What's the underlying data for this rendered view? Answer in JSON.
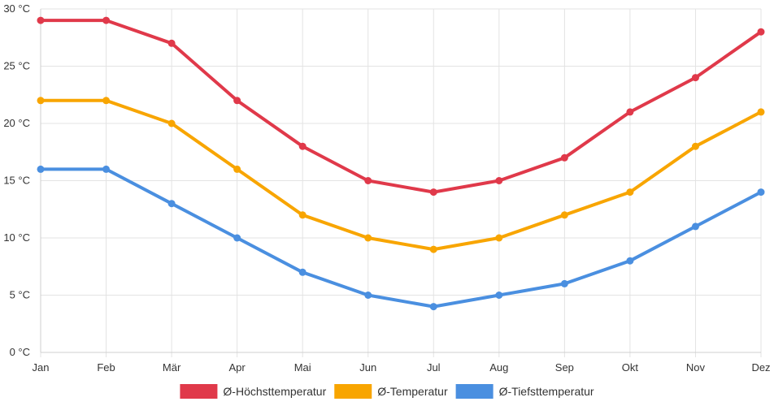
{
  "chart_data": {
    "type": "line",
    "categories": [
      "Jan",
      "Feb",
      "Mär",
      "Apr",
      "Mai",
      "Jun",
      "Jul",
      "Aug",
      "Sep",
      "Okt",
      "Nov",
      "Dez"
    ],
    "ylim": [
      0,
      30
    ],
    "yticks": [
      0,
      5,
      10,
      15,
      20,
      25,
      30
    ],
    "yunit": "°C",
    "grid": true,
    "legend_position": "bottom",
    "series": [
      {
        "name": "Ø-Höchsttemperatur",
        "color": "#e0394a",
        "values": [
          29,
          29,
          27,
          22,
          18,
          15,
          14,
          15,
          17,
          21,
          24,
          28
        ]
      },
      {
        "name": "Ø-Temperatur",
        "color": "#f8a500",
        "values": [
          22,
          22,
          20,
          16,
          12,
          10,
          9,
          10,
          12,
          14,
          18,
          21
        ]
      },
      {
        "name": "Ø-Tiefsttemperatur",
        "color": "#4a8fe0",
        "values": [
          16,
          16,
          13,
          10,
          7,
          5,
          4,
          5,
          6,
          8,
          11,
          14
        ]
      }
    ]
  }
}
